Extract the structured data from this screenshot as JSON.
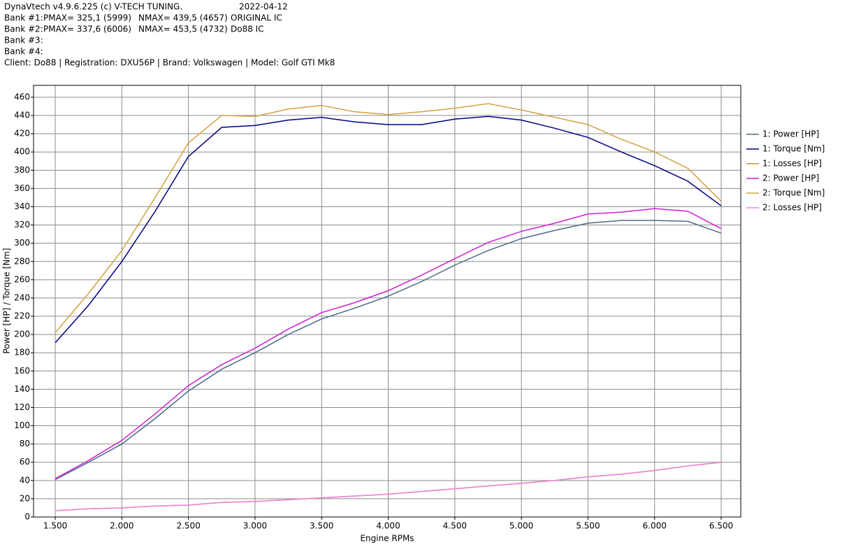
{
  "header": {
    "title": "DynaVtech v4.9.6.225 (c) V-TECH TUNING.",
    "date": "2022-04-12",
    "banks": [
      [
        "Bank #1:",
        "PMAX= 325,1 (5999)",
        "NMAX= 439,5 (4657)",
        "ORIGINAL IC"
      ],
      [
        "Bank #2:",
        "PMAX= 337,6 (6006)",
        "NMAX= 453,5 (4732)",
        "Do88 IC"
      ],
      [
        "Bank #3:"
      ],
      [
        "Bank #4:"
      ]
    ],
    "client": "Client: Do88 | Registration: DXU56P | Brand: Volkswagen | Model: Golf GTI Mk8"
  },
  "chart_data": {
    "type": "line",
    "x_label": "Engine RPMs",
    "y_label": "Power [HP] / Torque [Nm]",
    "grid": true,
    "legend": "right",
    "xlim": [
      1337,
      6647
    ],
    "ylim": [
      0,
      473
    ],
    "xticks": [
      {
        "value": 1500,
        "label": "1.500"
      },
      {
        "value": 2000,
        "label": "2.000"
      },
      {
        "value": 2500,
        "label": "2.500"
      },
      {
        "value": 3000,
        "label": "3.000"
      },
      {
        "value": 3500,
        "label": "3.500"
      },
      {
        "value": 4000,
        "label": "4.000"
      },
      {
        "value": 4500,
        "label": "4.500"
      },
      {
        "value": 5000,
        "label": "5.000"
      },
      {
        "value": 5500,
        "label": "5.500"
      },
      {
        "value": 6000,
        "label": "6.000"
      },
      {
        "value": 6500,
        "label": "6.500"
      }
    ],
    "yticks": [
      0,
      20,
      40,
      60,
      80,
      100,
      120,
      140,
      160,
      180,
      200,
      220,
      240,
      260,
      280,
      300,
      320,
      340,
      360,
      380,
      400,
      420,
      440,
      460
    ],
    "x": [
      1500,
      1750,
      2000,
      2250,
      2500,
      2750,
      3000,
      3250,
      3500,
      3750,
      4000,
      4250,
      4500,
      4750,
      5000,
      5250,
      5500,
      5750,
      6000,
      6250,
      6500
    ],
    "series": [
      {
        "name": "1: Power [HP]",
        "color": "#4a6a8a",
        "values": [
          41,
          60,
          80,
          108,
          138,
          162,
          180,
          200,
          217,
          229,
          242,
          258,
          276,
          292,
          305,
          314,
          322,
          325,
          325,
          324,
          311
        ]
      },
      {
        "name": "1: Torque [Nm]",
        "color": "#000080",
        "values": [
          191,
          232,
          280,
          335,
          395,
          427,
          429,
          435,
          438,
          433,
          430,
          430,
          436,
          439,
          435,
          426,
          416,
          400,
          385,
          368,
          341
        ]
      },
      {
        "name": "1: Losses [HP]",
        "color": "#c89030",
        "values": [
          7,
          9,
          10,
          12,
          13,
          16,
          17,
          19,
          21,
          23,
          25,
          28,
          31,
          34,
          37,
          40,
          44,
          47,
          51,
          56,
          60
        ]
      },
      {
        "name": "2: Power [HP]",
        "color": "#d020d0",
        "values": [
          42,
          62,
          84,
          113,
          144,
          167,
          185,
          206,
          224,
          235,
          248,
          265,
          283,
          301,
          313,
          322,
          332,
          334,
          338,
          335,
          316
        ]
      },
      {
        "name": "2: Torque [Nm]",
        "color": "#d4a040",
        "values": [
          202,
          245,
          292,
          350,
          410,
          440,
          439,
          447,
          451,
          444,
          441,
          444,
          448,
          453,
          446,
          438,
          430,
          414,
          400,
          382,
          346
        ]
      },
      {
        "name": "2: Losses [HP]",
        "color": "#f080e0",
        "values": [
          7,
          9,
          10,
          12,
          13,
          16,
          17,
          19,
          21,
          23,
          25,
          28,
          31,
          34,
          37,
          40,
          44,
          47,
          51,
          56,
          60
        ]
      }
    ]
  }
}
